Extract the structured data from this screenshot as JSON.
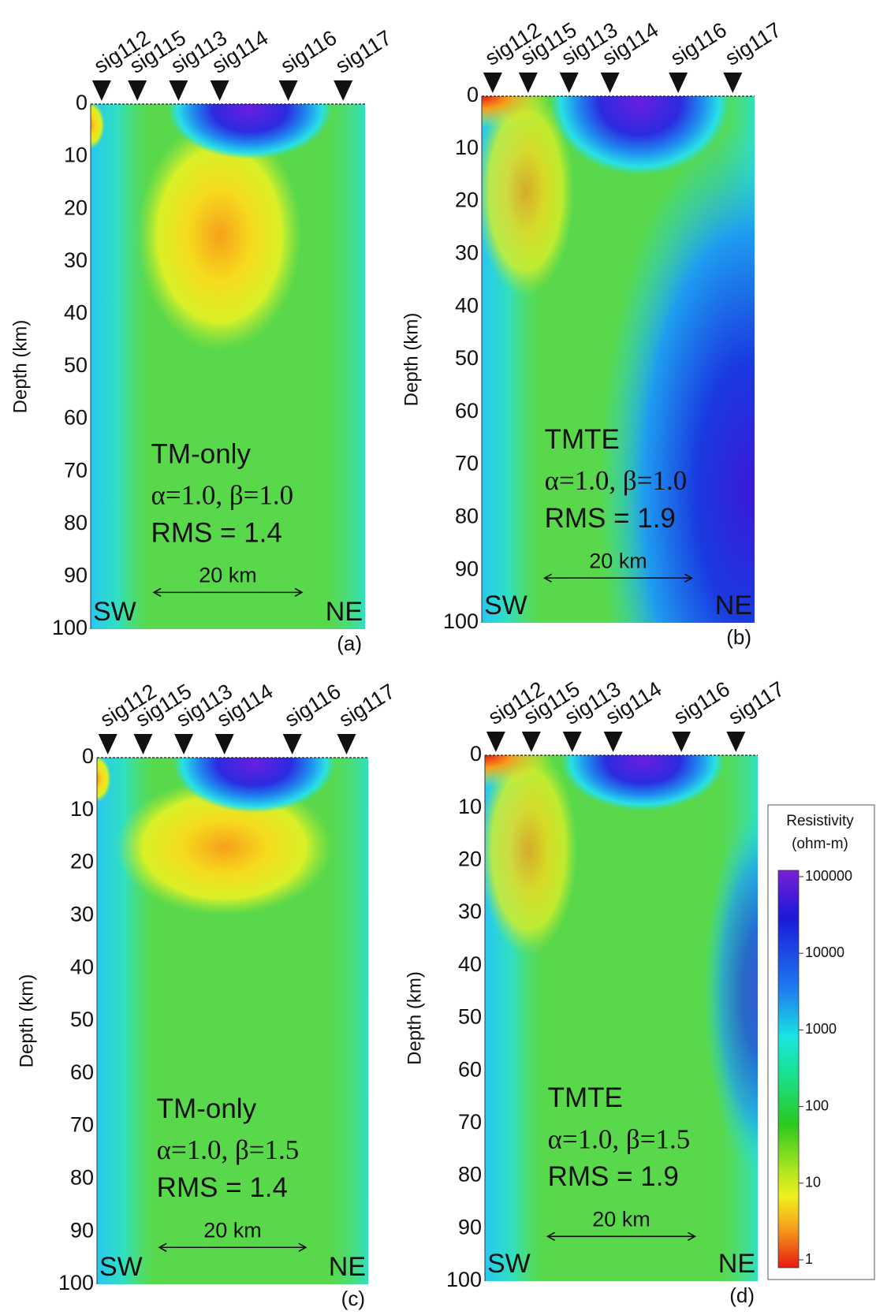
{
  "y_axis_label": "Depth (km)",
  "depth_ticks": [
    0,
    10,
    20,
    30,
    40,
    50,
    60,
    70,
    80,
    90,
    100
  ],
  "stations": [
    "sig112",
    "sig115",
    "sig113",
    "sig114",
    "sig116",
    "sig117"
  ],
  "scale_bar": "20 km",
  "directions": [
    "SW",
    "NE"
  ],
  "panels": [
    {
      "method": "TM-only",
      "params": "α=1.0, β=1.0",
      "rms": "RMS = 1.4",
      "label": "(a)"
    },
    {
      "method": "TMTE",
      "params": "α=1.0, β=1.0",
      "rms": "RMS = 1.9",
      "label": "(b)"
    },
    {
      "method": "TM-only",
      "params": "α=1.0, β=1.5",
      "rms": "RMS = 1.4",
      "label": "(c)"
    },
    {
      "method": "TMTE",
      "params": "α=1.0, β=1.5",
      "rms": "RMS = 1.9",
      "label": "(d)"
    }
  ],
  "colorbar": {
    "title": [
      "Resistivity",
      "(ohm-m)"
    ],
    "ticks": [
      100000,
      10000,
      1000,
      100,
      10,
      1
    ]
  }
}
